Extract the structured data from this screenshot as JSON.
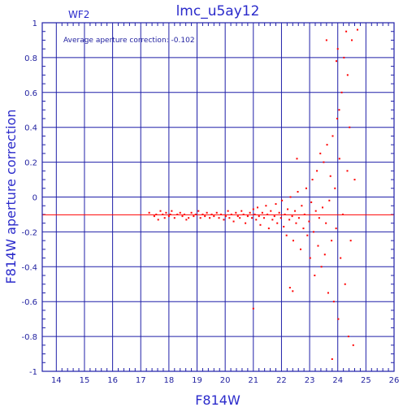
{
  "chart_data": {
    "type": "scatter",
    "title": "lmc_u5ay12",
    "chip_label": "WF2",
    "annotation": "Average aperture correction: -0.102",
    "xlabel": "F814W",
    "ylabel": "F814W aperture correction",
    "xlim": [
      13.5,
      26
    ],
    "ylim": [
      -1,
      1
    ],
    "xticks": [
      "14",
      "15",
      "16",
      "17",
      "18",
      "19",
      "20",
      "21",
      "22",
      "23",
      "24",
      "25",
      "26"
    ],
    "yticks": [
      "-1",
      "-0.8",
      "-0.6",
      "-0.4",
      "-0.2",
      "0",
      "0.2",
      "0.4",
      "0.6",
      "0.8",
      "1"
    ],
    "grid": true,
    "reference_line": -0.102,
    "colors": {
      "axes": "#1f1fa8",
      "points": "#ff0000",
      "reference": "#ff0000"
    },
    "series": [
      {
        "points": [
          [
            17.3,
            -0.09
          ],
          [
            17.48,
            -0.11
          ],
          [
            17.55,
            -0.1
          ],
          [
            17.62,
            -0.13
          ],
          [
            17.7,
            -0.08
          ],
          [
            17.78,
            -0.1
          ],
          [
            17.85,
            -0.12
          ],
          [
            17.9,
            -0.09
          ],
          [
            18.0,
            -0.11
          ],
          [
            18.05,
            -0.1
          ],
          [
            18.1,
            -0.08
          ],
          [
            18.2,
            -0.12
          ],
          [
            18.3,
            -0.1
          ],
          [
            18.4,
            -0.09
          ],
          [
            18.48,
            -0.11
          ],
          [
            18.55,
            -0.1
          ],
          [
            18.62,
            -0.13
          ],
          [
            18.7,
            -0.12
          ],
          [
            18.8,
            -0.09
          ],
          [
            18.88,
            -0.11
          ],
          [
            18.95,
            -0.1
          ],
          [
            19.05,
            -0.08
          ],
          [
            19.12,
            -0.12
          ],
          [
            19.2,
            -0.1
          ],
          [
            19.28,
            -0.11
          ],
          [
            19.35,
            -0.09
          ],
          [
            19.45,
            -0.12
          ],
          [
            19.52,
            -0.1
          ],
          [
            19.6,
            -0.11
          ],
          [
            19.7,
            -0.09
          ],
          [
            19.78,
            -0.12
          ],
          [
            19.85,
            -0.1
          ],
          [
            19.95,
            -0.13
          ],
          [
            20.02,
            -0.11
          ],
          [
            20.1,
            -0.08
          ],
          [
            20.15,
            -0.12
          ],
          [
            20.22,
            -0.1
          ],
          [
            20.3,
            -0.14
          ],
          [
            20.38,
            -0.09
          ],
          [
            20.45,
            -0.11
          ],
          [
            20.52,
            -0.12
          ],
          [
            20.58,
            -0.08
          ],
          [
            20.65,
            -0.1
          ],
          [
            20.72,
            -0.15
          ],
          [
            20.8,
            -0.11
          ],
          [
            20.88,
            -0.09
          ],
          [
            20.95,
            -0.12
          ],
          [
            21.0,
            -0.07
          ],
          [
            21.05,
            -0.1
          ],
          [
            21.1,
            -0.13
          ],
          [
            21.15,
            -0.06
          ],
          [
            21.2,
            -0.11
          ],
          [
            21.25,
            -0.16
          ],
          [
            21.32,
            -0.09
          ],
          [
            21.38,
            -0.12
          ],
          [
            21.45,
            -0.05
          ],
          [
            21.5,
            -0.1
          ],
          [
            21.55,
            -0.18
          ],
          [
            21.62,
            -0.08
          ],
          [
            21.68,
            -0.13
          ],
          [
            21.75,
            -0.11
          ],
          [
            21.8,
            -0.04
          ],
          [
            21.85,
            -0.15
          ],
          [
            21.92,
            -0.09
          ],
          [
            21.98,
            -0.12
          ],
          [
            22.02,
            -0.02
          ],
          [
            22.08,
            -0.17
          ],
          [
            22.12,
            -0.1
          ],
          [
            22.18,
            -0.22
          ],
          [
            22.22,
            -0.07
          ],
          [
            22.28,
            -0.13
          ],
          [
            22.32,
            0.0
          ],
          [
            22.38,
            -0.11
          ],
          [
            22.42,
            -0.25
          ],
          [
            22.48,
            -0.08
          ],
          [
            22.52,
            -0.15
          ],
          [
            22.58,
            0.03
          ],
          [
            22.62,
            -0.12
          ],
          [
            22.68,
            -0.3
          ],
          [
            22.72,
            -0.05
          ],
          [
            22.78,
            -0.18
          ],
          [
            22.82,
            -0.1
          ],
          [
            22.88,
            0.05
          ],
          [
            22.92,
            -0.22
          ],
          [
            22.98,
            -0.14
          ],
          [
            23.02,
            -0.35
          ],
          [
            23.06,
            -0.03
          ],
          [
            23.1,
            0.1
          ],
          [
            23.14,
            -0.2
          ],
          [
            23.18,
            -0.45
          ],
          [
            23.22,
            -0.08
          ],
          [
            23.26,
            0.15
          ],
          [
            23.3,
            -0.28
          ],
          [
            23.34,
            -0.12
          ],
          [
            23.38,
            0.25
          ],
          [
            23.42,
            -0.4
          ],
          [
            23.46,
            -0.06
          ],
          [
            23.5,
            0.2
          ],
          [
            23.54,
            -0.33
          ],
          [
            23.58,
            -0.15
          ],
          [
            23.62,
            0.3
          ],
          [
            23.66,
            -0.55
          ],
          [
            23.7,
            -0.02
          ],
          [
            23.74,
            0.12
          ],
          [
            23.78,
            -0.25
          ],
          [
            23.82,
            0.35
          ],
          [
            23.86,
            -0.6
          ],
          [
            23.9,
            0.05
          ],
          [
            23.94,
            -0.18
          ],
          [
            23.98,
            0.45
          ],
          [
            24.02,
            -0.7
          ],
          [
            24.06,
            0.22
          ],
          [
            24.1,
            -0.35
          ],
          [
            24.14,
            0.6
          ],
          [
            24.18,
            -0.1
          ],
          [
            24.22,
            0.8
          ],
          [
            24.26,
            -0.5
          ],
          [
            24.3,
            0.95
          ],
          [
            24.34,
            0.15
          ],
          [
            24.38,
            -0.8
          ],
          [
            24.42,
            0.4
          ],
          [
            24.46,
            -0.25
          ],
          [
            24.5,
            0.9
          ],
          [
            24.55,
            -0.85
          ],
          [
            24.6,
            0.1
          ],
          [
            24.7,
            0.96
          ],
          [
            21.0,
            -0.64
          ],
          [
            22.3,
            -0.52
          ],
          [
            22.4,
            -0.54
          ],
          [
            22.55,
            0.22
          ],
          [
            23.8,
            -0.93
          ],
          [
            23.6,
            0.9
          ],
          [
            24.0,
            0.85
          ],
          [
            23.95,
            0.78
          ],
          [
            24.35,
            0.7
          ],
          [
            24.05,
            0.5
          ]
        ]
      }
    ]
  }
}
